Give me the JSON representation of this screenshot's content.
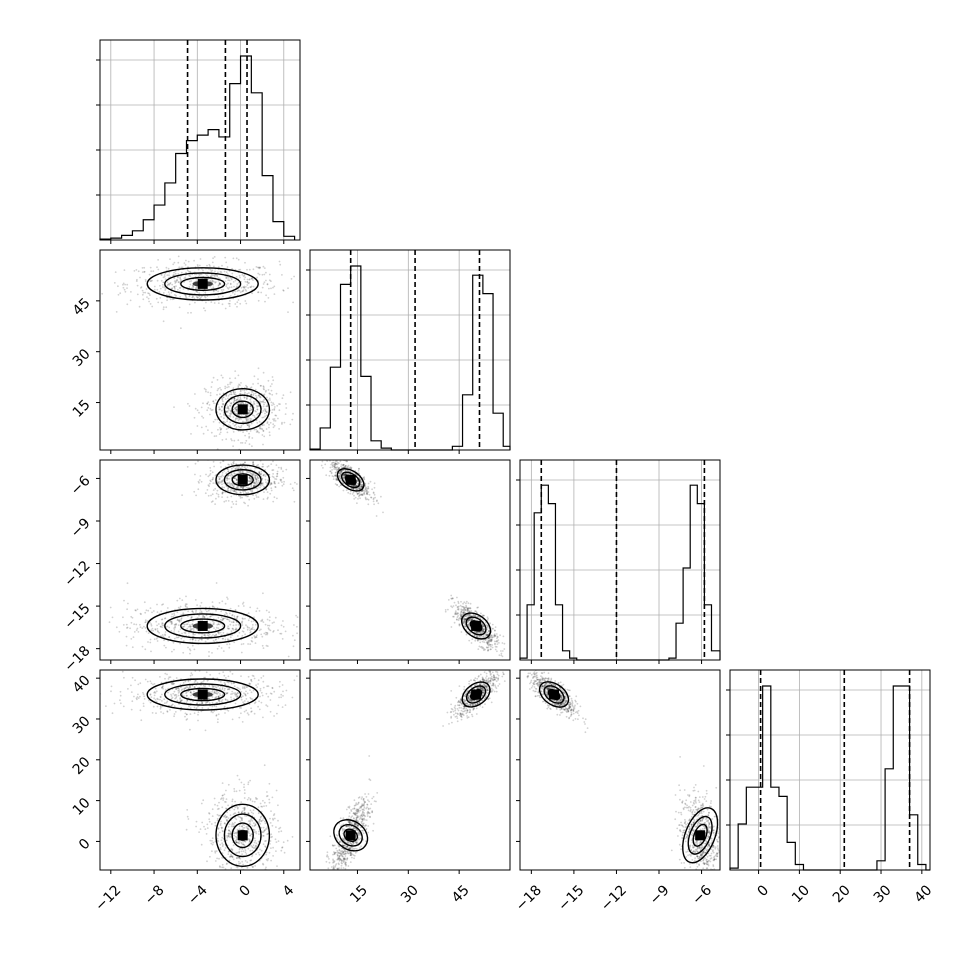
{
  "chart_data": {
    "type": "corner",
    "grid": true,
    "params": [
      {
        "range": [
          -13,
          5.5
        ],
        "ticks": [
          -12,
          -8,
          -4,
          0,
          4
        ],
        "quantiles": [
          -4.9,
          -1.4,
          0.6
        ]
      },
      {
        "range": [
          1,
          60
        ],
        "ticks": [
          15,
          30,
          45
        ],
        "quantiles": [
          13,
          32,
          51
        ]
      },
      {
        "range": [
          -18.8,
          -4.7
        ],
        "ticks": [
          -18,
          -15,
          -12,
          -9,
          -6
        ],
        "quantiles": [
          -17.3,
          -12.0,
          -5.8
        ]
      },
      {
        "range": [
          -7,
          42
        ],
        "ticks": [
          0,
          10,
          20,
          30,
          40
        ],
        "quantiles": [
          0.5,
          21,
          37
        ]
      }
    ],
    "histograms": [
      {
        "edges": [
          -13,
          -12,
          -11,
          -10,
          -9,
          -8,
          -7,
          -6,
          -5,
          -4,
          -3,
          -2,
          -1,
          0,
          1,
          2,
          3,
          4,
          5
        ],
        "counts": [
          0.005,
          0.01,
          0.025,
          0.05,
          0.11,
          0.19,
          0.31,
          0.47,
          0.54,
          0.57,
          0.6,
          0.56,
          0.85,
          1.0,
          0.8,
          0.35,
          0.1,
          0.02
        ]
      },
      {
        "edges": [
          1,
          4,
          7,
          10,
          13,
          16,
          19,
          22,
          25,
          28,
          31,
          34,
          37,
          40,
          43,
          46,
          49,
          52,
          55,
          58,
          60
        ],
        "counts": [
          0.005,
          0.12,
          0.45,
          0.9,
          1.0,
          0.4,
          0.05,
          0.01,
          0.0,
          0.0,
          0.0,
          0.0,
          0.0,
          0.0,
          0.02,
          0.3,
          0.95,
          0.85,
          0.2,
          0.02
        ]
      },
      {
        "edges": [
          -18.8,
          -18.3,
          -17.8,
          -17.3,
          -16.8,
          -16.3,
          -15.8,
          -15.3,
          -14.8,
          -14.3,
          -8.3,
          -7.8,
          -7.3,
          -6.8,
          -6.3,
          -5.8,
          -5.3,
          -4.7
        ],
        "counts": [
          0.01,
          0.3,
          0.8,
          0.95,
          0.85,
          0.3,
          0.05,
          0.01,
          0.0,
          0.0,
          0.01,
          0.2,
          0.5,
          0.95,
          0.85,
          0.3,
          0.05
        ]
      },
      {
        "edges": [
          -7,
          -5,
          -3,
          -1,
          1,
          3,
          5,
          7,
          9,
          11,
          29,
          31,
          33,
          35,
          37,
          39,
          41,
          42
        ],
        "counts": [
          0.01,
          0.25,
          0.45,
          0.45,
          1.0,
          0.45,
          0.4,
          0.15,
          0.03,
          0.0,
          0.05,
          0.55,
          1.0,
          1.0,
          0.3,
          0.03,
          0.0
        ]
      }
    ],
    "pairs": [
      {
        "row": 1,
        "col": 0,
        "clusters": [
          {
            "cx": -3.5,
            "cy": 50,
            "sx": 2.7,
            "sy": 2.5,
            "rho": 0.0
          },
          {
            "cx": 0.2,
            "cy": 13,
            "sx": 1.3,
            "sy": 3.2,
            "rho": 0.0
          }
        ]
      },
      {
        "row": 2,
        "col": 0,
        "clusters": [
          {
            "cx": 0.2,
            "cy": -6.1,
            "sx": 1.3,
            "sy": 0.55,
            "rho": 0.0
          },
          {
            "cx": -3.5,
            "cy": -16.4,
            "sx": 2.7,
            "sy": 0.65,
            "rho": 0.0
          }
        ]
      },
      {
        "row": 2,
        "col": 1,
        "clusters": [
          {
            "cx": 13,
            "cy": -6.1,
            "sx": 2.3,
            "sy": 0.5,
            "rho": -0.75
          },
          {
            "cx": 50,
            "cy": -16.4,
            "sx": 2.5,
            "sy": 0.6,
            "rho": -0.75
          }
        ]
      },
      {
        "row": 3,
        "col": 0,
        "clusters": [
          {
            "cx": -3.5,
            "cy": 36,
            "sx": 2.7,
            "sy": 2.0,
            "rho": 0.0
          },
          {
            "cx": 0.2,
            "cy": 1.5,
            "sx": 1.3,
            "sy": 4.0,
            "rho": 0.0
          }
        ]
      },
      {
        "row": 3,
        "col": 1,
        "clusters": [
          {
            "cx": 50,
            "cy": 36,
            "sx": 2.4,
            "sy": 2.0,
            "rho": 0.75
          },
          {
            "cx": 13,
            "cy": 1.5,
            "sx": 2.2,
            "sy": 3.5,
            "rho": 0.75
          }
        ]
      },
      {
        "row": 3,
        "col": 2,
        "clusters": [
          {
            "cx": -16.4,
            "cy": 36,
            "sx": 0.6,
            "sy": 2.0,
            "rho": -0.75
          },
          {
            "cx": -6.1,
            "cy": 1.5,
            "sx": 0.55,
            "sy": 3.8,
            "rho": -0.2
          }
        ]
      }
    ]
  }
}
